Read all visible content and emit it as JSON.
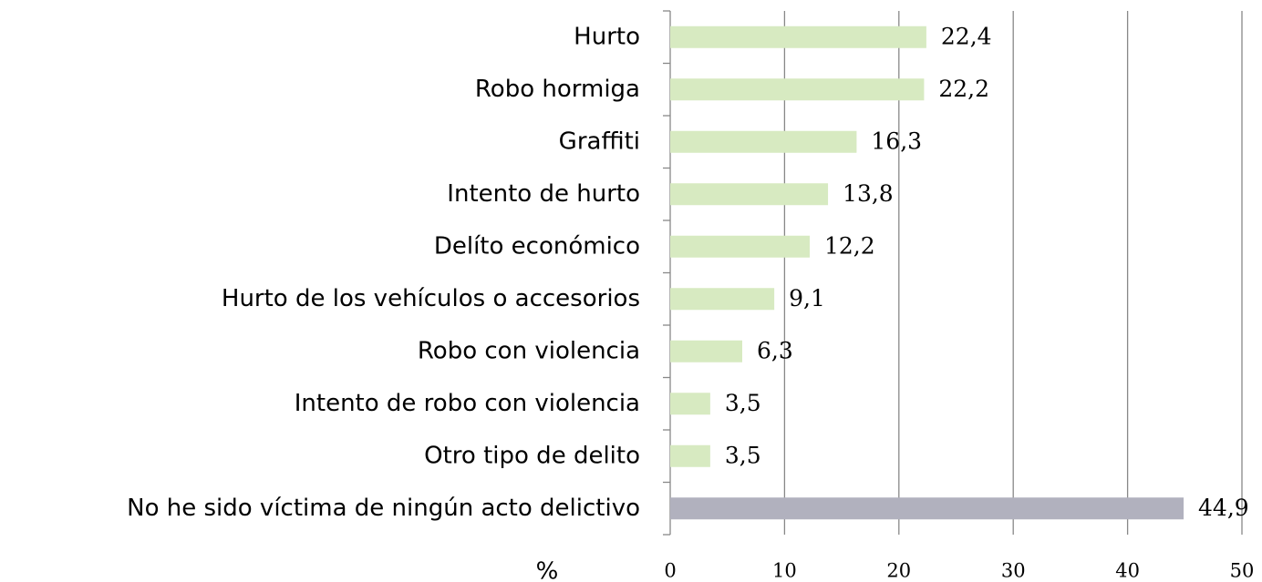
{
  "chart_data": {
    "type": "bar",
    "orientation": "horizontal",
    "x_label": "%",
    "categories": [
      "Hurto",
      "Robo hormiga",
      "Graffiti",
      "Intento de hurto",
      "Delíto económico",
      "Hurto de los vehículos o accesorios",
      "Robo con violencia",
      "Intento de robo con violencia",
      "Otro tipo de delito",
      "No he sido víctima de ningún acto delictivo"
    ],
    "values": [
      22.4,
      22.2,
      16.3,
      13.8,
      12.2,
      9.1,
      6.3,
      3.5,
      3.5,
      44.9
    ],
    "value_labels": [
      "22,4",
      "22,2",
      "16,3",
      "13,8",
      "12,2",
      "9,1",
      "6,3",
      "3,5",
      "3,5",
      "44,9"
    ],
    "colors": [
      "#d7eac1",
      "#d7eac1",
      "#d7eac1",
      "#d7eac1",
      "#d7eac1",
      "#d7eac1",
      "#d7eac1",
      "#d7eac1",
      "#d7eac1",
      "#b1b1be"
    ],
    "xlim": [
      0,
      50
    ],
    "xticks": [
      0,
      10,
      20,
      30,
      40,
      50
    ],
    "grid": true
  }
}
